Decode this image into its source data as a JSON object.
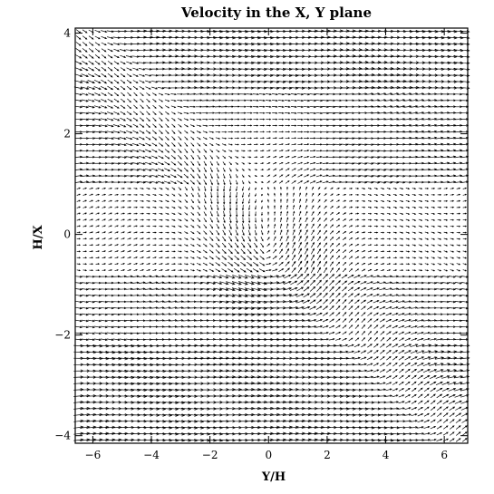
{
  "chart_data": {
    "type": "quiver",
    "title": "Velocity in the X, Y plane",
    "xlabel": "Y/H",
    "ylabel": "H/X",
    "xlim": [
      -6.6,
      6.8
    ],
    "ylim": [
      -4.15,
      4.1
    ],
    "xticks": [
      -6,
      -4,
      -2,
      0,
      2,
      4,
      6
    ],
    "yticks": [
      -4,
      -2,
      0,
      2,
      4
    ],
    "grid": false,
    "legend": "none",
    "field": {
      "nx": 62,
      "ny": 66,
      "dominant_direction": "+x",
      "density_bands": [
        {
          "y_from": 2.8,
          "y_to": 4.1,
          "speed": 1.0
        },
        {
          "y_from": 1.0,
          "y_to": 2.8,
          "speed": 0.75
        },
        {
          "y_from": -0.8,
          "y_to": 1.0,
          "speed": 0.35
        },
        {
          "y_from": -2.2,
          "y_to": -0.8,
          "speed": 0.7
        },
        {
          "y_from": -4.15,
          "y_to": -2.2,
          "speed": 1.0
        }
      ]
    },
    "colors": {
      "arrows": "#000000",
      "background": "#ffffff",
      "axes": "#000000"
    }
  }
}
